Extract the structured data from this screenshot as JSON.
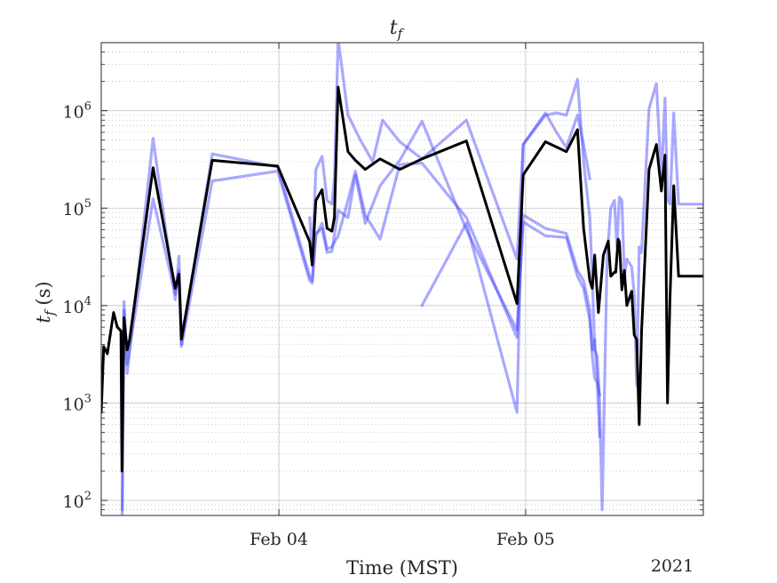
{
  "chart_data": {
    "type": "line",
    "title": "t",
    "title_sub": "f",
    "ylabel_main": "t",
    "ylabel_sub": "f",
    "ylabel_unit": "(s)",
    "xlabel": "Time (MST)",
    "year_label": "2021",
    "yscale": "log",
    "ylim": [
      70,
      5000000
    ],
    "xlim": [
      3.28,
      5.72
    ],
    "grid": "on",
    "legend": "none",
    "colors": {
      "main": "#000000",
      "member": "#4040ff",
      "axis": "#262626",
      "grid": "#b4b4b4"
    },
    "x_ticks": [
      {
        "value": 4.0,
        "label": "Feb 04"
      },
      {
        "value": 5.0,
        "label": "Feb 05"
      }
    ],
    "y_ticks": [
      {
        "value": 100,
        "base": "10",
        "exp": "2"
      },
      {
        "value": 1000,
        "base": "10",
        "exp": "3"
      },
      {
        "value": 10000,
        "base": "10",
        "exp": "4"
      },
      {
        "value": 100000,
        "base": "10",
        "exp": "5"
      },
      {
        "value": 1000000,
        "base": "10",
        "exp": "6"
      }
    ],
    "series": [
      {
        "role": "main",
        "x": [
          3.28,
          3.29,
          3.305,
          3.33,
          3.345,
          3.36,
          3.364,
          3.372,
          3.385,
          3.395,
          3.49,
          3.58,
          3.595,
          3.605,
          3.73,
          3.995,
          4.125,
          4.135,
          4.15,
          4.175,
          4.195,
          4.215,
          4.225,
          4.24,
          4.28,
          4.31,
          4.35,
          4.41,
          4.49,
          4.58,
          4.76,
          4.965,
          4.99,
          5.08,
          5.165,
          5.21,
          5.235,
          5.26,
          5.27,
          5.28,
          5.295,
          5.315,
          5.335,
          5.345,
          5.36,
          5.365,
          5.375,
          5.38,
          5.39,
          5.4,
          5.41,
          5.43,
          5.44,
          5.45,
          5.46,
          5.47,
          5.5,
          5.53,
          5.55,
          5.565,
          5.575,
          5.585,
          5.6,
          5.62,
          5.65,
          5.67,
          5.7,
          5.72
        ],
        "y": [
          800,
          3800,
          3200,
          8500,
          6000,
          5500,
          200,
          7500,
          3500,
          4500,
          260000,
          15000,
          21000,
          4500,
          310000,
          270000,
          45000,
          26000,
          120000,
          155000,
          62000,
          58000,
          80000,
          1750000,
          380000,
          310000,
          250000,
          320000,
          250000,
          320000,
          490000,
          10500,
          220000,
          480000,
          380000,
          640000,
          62000,
          18000,
          15000,
          33000,
          8500,
          33000,
          46000,
          20000,
          22000,
          22000,
          48000,
          45000,
          14500,
          23000,
          10000,
          14000,
          5000,
          4500,
          600,
          5500,
          250000,
          450000,
          150000,
          350000,
          1000,
          12000,
          170000,
          20000,
          20000,
          20000,
          20000,
          20000
        ]
      },
      {
        "role": "member",
        "x": [
          3.365,
          3.372,
          3.385,
          3.49,
          3.58,
          3.595,
          3.605,
          3.73,
          3.995,
          4.125,
          4.135,
          4.15,
          4.175,
          4.195,
          4.215,
          4.24,
          4.28,
          4.31,
          4.35,
          4.41,
          4.49,
          4.58,
          4.76,
          4.965,
          4.99,
          5.08,
          5.165,
          5.21,
          5.235,
          5.26,
          5.27,
          5.28,
          5.29,
          5.3
        ],
        "y": [
          70,
          9000,
          2000,
          520000,
          11500,
          32000,
          4000,
          360000,
          265000,
          20000,
          18000,
          52000,
          70000,
          38000,
          40000,
          52000,
          120000,
          240000,
          85000,
          48000,
          280000,
          290000,
          80000,
          4700,
          85000,
          62000,
          55000,
          23000,
          18000,
          9000,
          3000,
          1800,
          1600,
          450
        ]
      },
      {
        "role": "member",
        "x": [
          3.365,
          3.372,
          3.385,
          3.49,
          3.58,
          3.595,
          3.605,
          3.73,
          3.995,
          4.125,
          4.135,
          4.15,
          4.175,
          4.195,
          4.215,
          4.24,
          4.28,
          4.31,
          4.35,
          4.41,
          4.49,
          4.58,
          4.76,
          4.965,
          4.99,
          5.08,
          5.165,
          5.21,
          5.235,
          5.26,
          5.27,
          5.28,
          5.29,
          5.3
        ],
        "y": [
          80,
          11000,
          2500,
          125000,
          13000,
          23000,
          3800,
          190000,
          240000,
          18000,
          17000,
          55000,
          62000,
          35000,
          36000,
          95000,
          80000,
          220000,
          70000,
          170000,
          310000,
          780000,
          60000,
          5600,
          72000,
          52000,
          50000,
          20000,
          15000,
          7000,
          3500,
          4500,
          1800,
          1200
        ]
      },
      {
        "role": "member",
        "x": [
          4.125,
          4.135,
          4.15,
          4.175,
          4.195,
          4.215,
          4.225,
          4.24,
          4.28,
          4.33,
          4.38,
          4.42,
          4.49,
          4.58,
          4.76,
          4.965,
          4.99,
          5.08,
          5.125,
          5.165,
          5.21,
          5.235,
          5.26
        ],
        "y": [
          80000,
          30000,
          250000,
          340000,
          120000,
          110000,
          200000,
          5500000,
          900000,
          500000,
          300000,
          800000,
          480000,
          320000,
          800000,
          30000,
          450000,
          950000,
          600000,
          420000,
          900000,
          450000,
          200000
        ]
      },
      {
        "role": "member",
        "x": [
          4.58,
          4.76,
          4.965,
          4.99,
          5.08,
          5.125,
          5.165,
          5.21,
          5.235,
          5.26,
          5.27,
          5.28,
          5.29,
          5.3,
          5.31,
          5.33,
          5.345,
          5.36,
          5.37,
          5.38,
          5.39,
          5.4,
          5.41,
          5.43,
          5.44,
          5.45,
          5.46,
          5.47,
          5.5,
          5.53,
          5.55,
          5.565,
          5.575,
          5.585,
          5.6,
          5.62,
          5.64,
          5.66,
          5.68,
          5.7,
          5.72
        ],
        "y": [
          10000,
          70000,
          800,
          450000,
          900000,
          950000,
          900000,
          2100000,
          300000,
          80000,
          20000,
          3500,
          3000,
          1000,
          80,
          30000,
          100000,
          120000,
          40000,
          130000,
          120000,
          20000,
          30000,
          25000,
          13000,
          1500,
          40000,
          35000,
          1050000,
          1900000,
          200000,
          1350000,
          120000,
          110000,
          950000,
          110000,
          110000,
          110000,
          110000,
          110000,
          110000
        ]
      }
    ]
  }
}
